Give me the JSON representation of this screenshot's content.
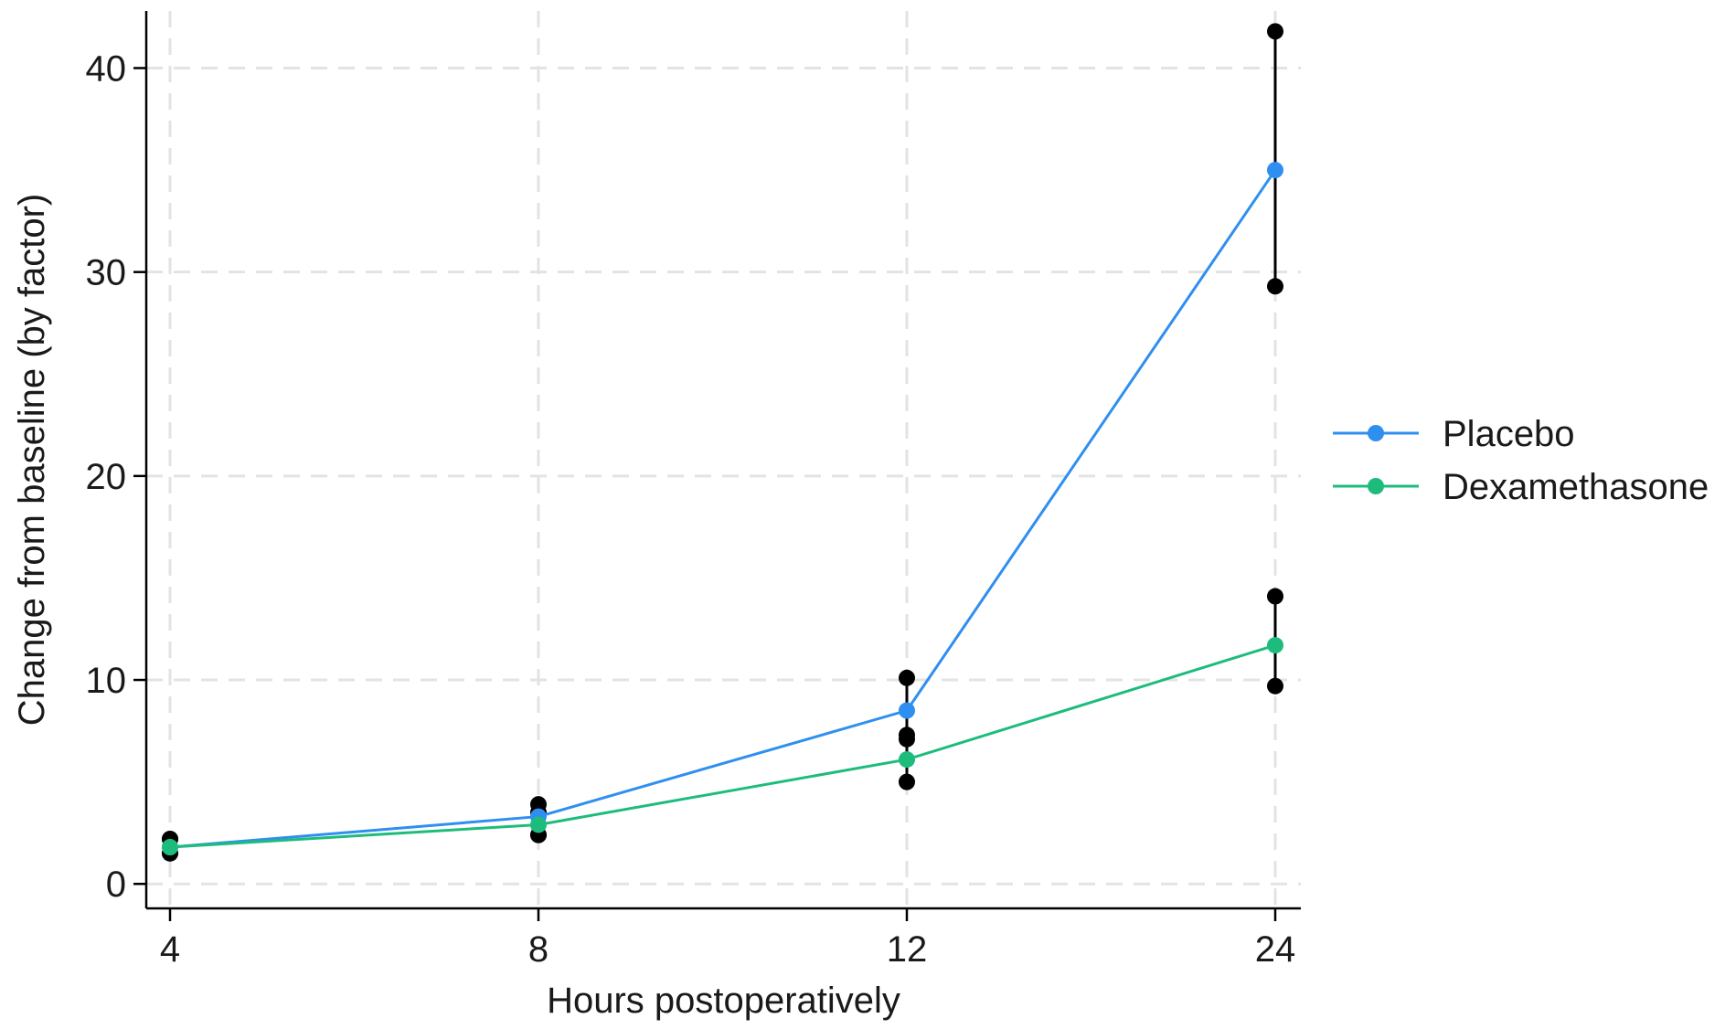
{
  "chart_data": {
    "type": "line",
    "categories": [
      "4",
      "8",
      "12",
      "24"
    ],
    "xlabel": "Hours postoperatively",
    "ylabel": "Change from baseline (by factor)",
    "ylim": [
      -1.2,
      42.8
    ],
    "yticks": [
      "0",
      "10",
      "20",
      "30",
      "40"
    ],
    "grid": true,
    "legend_position": "right",
    "series": [
      {
        "name": "Placebo",
        "color": "#2f8ff0",
        "values": [
          1.8,
          3.3,
          8.5,
          35.0
        ],
        "ci_low": [
          1.5,
          2.4,
          7.1,
          29.3
        ],
        "ci_high": [
          2.2,
          3.9,
          10.1,
          41.8
        ]
      },
      {
        "name": "Dexamethasone",
        "color": "#1ebc7c",
        "values": [
          1.8,
          2.9,
          6.1,
          11.7
        ],
        "ci_low": [
          1.5,
          2.4,
          5.0,
          9.7
        ],
        "ci_high": [
          2.2,
          3.5,
          7.3,
          14.1
        ]
      }
    ],
    "ci_color": "#000000"
  }
}
